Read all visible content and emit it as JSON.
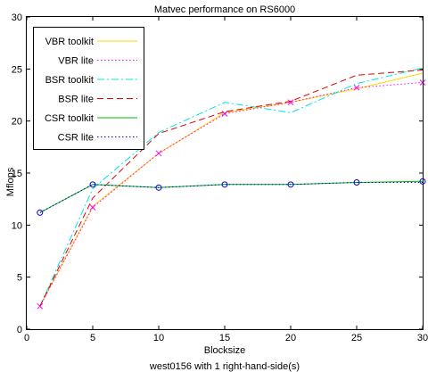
{
  "chart_data": {
    "type": "line",
    "title": "Matvec performance on RS6000",
    "xlabel": "Blocksize",
    "ylabel": "Mflops",
    "caption": "west0156 with 1 right-hand-side(s)",
    "xlim": [
      0,
      30
    ],
    "ylim": [
      0,
      30
    ],
    "xticks": [
      0,
      5,
      10,
      15,
      20,
      25,
      30
    ],
    "yticks": [
      0,
      5,
      10,
      15,
      20,
      25,
      30
    ],
    "grid": false,
    "legend_position": "top-left",
    "series": [
      {
        "name": "VBR toolkit",
        "color": "#ffd700",
        "dash": "solid",
        "marker": "none",
        "x": [
          1,
          5,
          10,
          15,
          20,
          25,
          30
        ],
        "y": [
          2.2,
          11.8,
          16.9,
          20.8,
          21.8,
          23.1,
          24.6
        ]
      },
      {
        "name": "VBR lite",
        "color": "#ff00ff",
        "dash": "dotted",
        "marker": "x",
        "x": [
          1,
          5,
          10,
          15,
          20,
          25,
          30
        ],
        "y": [
          2.2,
          11.7,
          16.9,
          20.7,
          21.8,
          23.2,
          23.7
        ]
      },
      {
        "name": "BSR toolkit",
        "color": "#00e5e5",
        "dash": "dashdot",
        "marker": "none",
        "x": [
          1,
          5,
          10,
          15,
          20,
          25,
          30
        ],
        "y": [
          2.2,
          13.5,
          18.9,
          21.8,
          20.8,
          23.6,
          25.1
        ]
      },
      {
        "name": "BSR lite",
        "color": "#e00000",
        "dash": "dashed",
        "marker": "none",
        "x": [
          1,
          5,
          10,
          15,
          20,
          25,
          30
        ],
        "y": [
          2.2,
          12.6,
          18.8,
          20.9,
          21.9,
          24.4,
          24.9
        ]
      },
      {
        "name": "CSR toolkit",
        "color": "#00c000",
        "dash": "solid",
        "marker": "o",
        "x": [
          1,
          5,
          10,
          15,
          20,
          25,
          30
        ],
        "y": [
          11.2,
          13.9,
          13.6,
          13.9,
          13.9,
          14.1,
          14.2
        ]
      },
      {
        "name": "CSR lite",
        "color": "#0000d0",
        "dash": "dotted",
        "marker": "none",
        "x": [
          1,
          5,
          10,
          15,
          20,
          25,
          30
        ],
        "y": [
          11.2,
          13.9,
          13.6,
          13.9,
          13.9,
          14.1,
          14.1
        ]
      }
    ]
  }
}
